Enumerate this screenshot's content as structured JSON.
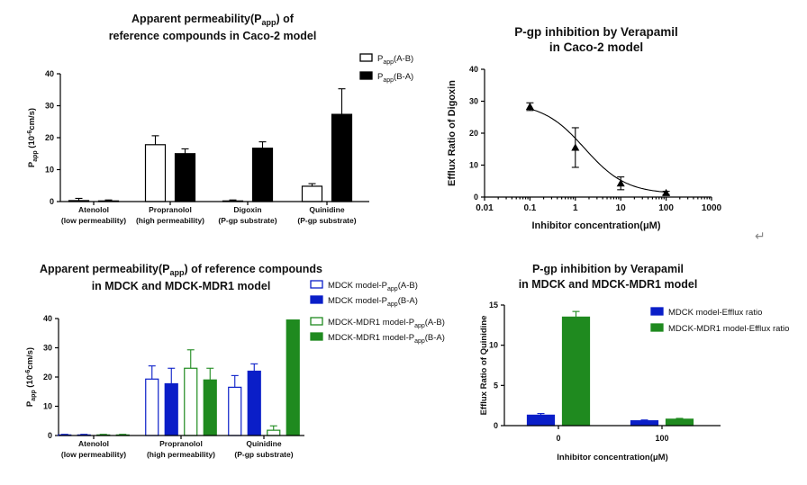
{
  "colors": {
    "black": "#000000",
    "white": "#ffffff",
    "blue": "#0a1ec8",
    "green": "#1f8a1f"
  },
  "return_icon": "return-arrow-icon",
  "chart_data": [
    {
      "id": "caco2_perm",
      "type": "bar",
      "title_lines": [
        "Apparent permeability(P",
        "app",
        ") of",
        "reference compounds in Caco-2 model"
      ],
      "ylabel": "P",
      "ylabel_sub": "app",
      "ylabel_rest": " (10",
      "ylabel_sup": "-6",
      "ylabel_end": "cm/s)",
      "ylim": [
        0,
        40
      ],
      "yticks": [
        "0",
        "10",
        "20",
        "30",
        "40"
      ],
      "categories": [
        {
          "line1": "Atenolol",
          "line2": "(low permeability)"
        },
        {
          "line1": "Propranolol",
          "line2": "(high permeability)"
        },
        {
          "line1": "Digoxin",
          "line2": "(P-gp substrate)"
        },
        {
          "line1": "Quinidine",
          "line2": "(P-gp substrate)"
        }
      ],
      "series": [
        {
          "name": "P",
          "name_sub": "app",
          "name_rest": "(A-B)",
          "style": "open-black",
          "values": [
            0.3,
            17.8,
            0.2,
            4.8
          ],
          "errors": [
            0.7,
            2.8,
            0.3,
            0.8
          ]
        },
        {
          "name": "P",
          "name_sub": "app",
          "name_rest": "(B-A)",
          "style": "solid-black",
          "values": [
            0.2,
            15.0,
            16.7,
            27.3
          ],
          "errors": [
            0.3,
            1.5,
            2.0,
            8.0
          ]
        }
      ],
      "legend_position": "top-right"
    },
    {
      "id": "caco2_inhibition",
      "type": "scatter",
      "title_lines": [
        "P-gp inhibition by Verapamil",
        "in Caco-2 model"
      ],
      "xlabel": "Inhibitor concentration(μM)",
      "ylabel": "Efflux Ratio of Digoxin",
      "xscale": "log",
      "xlim": [
        0.01,
        1000
      ],
      "xticks": [
        "0.01",
        "0.1",
        "1",
        "10",
        "100",
        "1000"
      ],
      "ylim": [
        0,
        40
      ],
      "yticks": [
        "0",
        "10",
        "20",
        "30",
        "40"
      ],
      "x": [
        0.1,
        1,
        10,
        100
      ],
      "y": [
        28.3,
        15.5,
        4.3,
        1.3
      ],
      "errors": [
        1.2,
        6.2,
        2.0,
        0.5
      ],
      "fit": "sigmoidal curve"
    },
    {
      "id": "mdck_perm",
      "type": "bar",
      "title_lines": [
        "Apparent permeability(P",
        "app",
        ") of reference compounds",
        "in MDCK and MDCK-MDR1 model"
      ],
      "ylabel": "P",
      "ylabel_sub": "app",
      "ylabel_rest": " (10",
      "ylabel_sup": "-6",
      "ylabel_end": "cm/s)",
      "ylim": [
        0,
        40
      ],
      "yticks": [
        "0",
        "10",
        "20",
        "30",
        "40"
      ],
      "categories": [
        {
          "line1": "Atenolol",
          "line2": "(low permeability)"
        },
        {
          "line1": "Propranolol",
          "line2": "(high permeability)"
        },
        {
          "line1": "Quinidine",
          "line2": "(P-gp substrate)"
        }
      ],
      "series": [
        {
          "name": "MDCK model-P",
          "name_sub": "app",
          "name_rest": "(A-B)",
          "style": "open-blue",
          "values": [
            0.2,
            19.3,
            16.5
          ],
          "errors": [
            0.2,
            4.5,
            4.0
          ]
        },
        {
          "name": "MDCK model-P",
          "name_sub": "app",
          "name_rest": "(B-A)",
          "style": "solid-blue",
          "values": [
            0.2,
            17.7,
            22.0
          ],
          "errors": [
            0.2,
            5.3,
            2.5
          ]
        },
        {
          "name": "MDCK-MDR1 model-P",
          "name_sub": "app",
          "name_rest": "(A-B)",
          "style": "open-green",
          "values": [
            0.2,
            23.0,
            1.8
          ],
          "errors": [
            0.2,
            6.3,
            1.5
          ]
        },
        {
          "name": "MDCK-MDR1 model-P",
          "name_sub": "app",
          "name_rest": "(B-A)",
          "style": "solid-green",
          "values": [
            0.2,
            19.0,
            39.5
          ],
          "errors": [
            0.2,
            4.0,
            0.0
          ]
        }
      ],
      "legend_position": "top-right"
    },
    {
      "id": "mdck_inhibition",
      "type": "bar",
      "title_lines": [
        "P-gp inhibition by Verapamil",
        "in MDCK and MDCK-MDR1 model"
      ],
      "xlabel": "Inhibitor concentration(μM)",
      "ylabel": "Efflux Ratio of Quinidine",
      "ylim": [
        0,
        15
      ],
      "yticks": [
        "0",
        "5",
        "10",
        "15"
      ],
      "categories": [
        "0",
        "100"
      ],
      "series": [
        {
          "name": "MDCK model-Efflux ratio",
          "style": "solid-blue",
          "values": [
            1.3,
            0.6
          ],
          "errors": [
            0.2,
            0.1
          ]
        },
        {
          "name": "MDCK-MDR1 model-Efflux ratio",
          "style": "solid-green",
          "values": [
            13.5,
            0.8
          ],
          "errors": [
            0.7,
            0.1
          ]
        }
      ],
      "legend_position": "top-right"
    }
  ]
}
